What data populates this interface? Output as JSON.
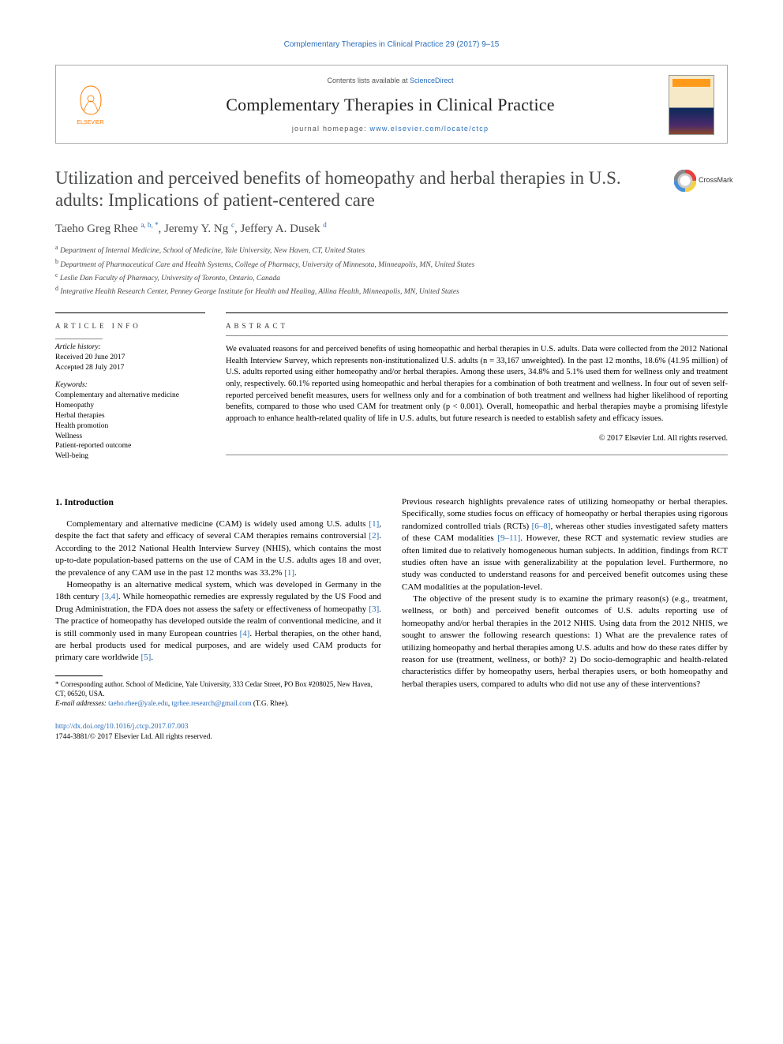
{
  "header": {
    "citation": "Complementary Therapies in Clinical Practice 29 (2017) 9–15",
    "contents_prefix": "Contents lists available at ",
    "contents_link": "ScienceDirect",
    "journal_title": "Complementary Therapies in Clinical Practice",
    "homepage_prefix": "journal homepage: ",
    "homepage_url": "www.elsevier.com/locate/ctcp",
    "publisher": "ELSEVIER"
  },
  "crossmark_label": "CrossMark",
  "article": {
    "title": "Utilization and perceived benefits of homeopathy and herbal therapies in U.S. adults: Implications of patient-centered care",
    "authors_html": "Taeho Greg Rhee <sup>a, b, *</sup>, Jeremy Y. Ng <sup>c</sup>, Jeffery A. Dusek <sup>d</sup>",
    "affiliations": [
      "a Department of Internal Medicine, School of Medicine, Yale University, New Haven, CT, United States",
      "b Department of Pharmaceutical Care and Health Systems, College of Pharmacy, University of Minnesota, Minneapolis, MN, United States",
      "c Leslie Dan Faculty of Pharmacy, University of Toronto, Ontario, Canada",
      "d Integrative Health Research Center, Penney George Institute for Health and Healing, Allina Health, Minneapolis, MN, United States"
    ]
  },
  "info": {
    "heading": "ARTICLE INFO",
    "history_label": "Article history:",
    "received": "Received 20 June 2017",
    "accepted": "Accepted 28 July 2017",
    "keywords_label": "Keywords:",
    "keywords": [
      "Complementary and alternative medicine",
      "Homeopathy",
      "Herbal therapies",
      "Health promotion",
      "Wellness",
      "Patient-reported outcome",
      "Well-being"
    ]
  },
  "abstract": {
    "heading": "ABSTRACT",
    "text": "We evaluated reasons for and perceived benefits of using homeopathic and herbal therapies in U.S. adults. Data were collected from the 2012 National Health Interview Survey, which represents non-institutionalized U.S. adults (n = 33,167 unweighted). In the past 12 months, 18.6% (41.95 million) of U.S. adults reported using either homeopathy and/or herbal therapies. Among these users, 34.8% and 5.1% used them for wellness only and treatment only, respectively. 60.1% reported using homeopathic and herbal therapies for a combination of both treatment and wellness. In four out of seven self-reported perceived benefit measures, users for wellness only and for a combination of both treatment and wellness had higher likelihood of reporting benefits, compared to those who used CAM for treatment only (p < 0.001). Overall, homeopathic and herbal therapies maybe a promising lifestyle approach to enhance health-related quality of life in U.S. adults, but future research is needed to establish safety and efficacy issues.",
    "copyright": "© 2017 Elsevier Ltd. All rights reserved."
  },
  "body": {
    "section1_heading": "1. Introduction",
    "para1": "Complementary and alternative medicine (CAM) is widely used among U.S. adults [1], despite the fact that safety and efficacy of several CAM therapies remains controversial [2]. According to the 2012 National Health Interview Survey (NHIS), which contains the most up-to-date population-based patterns on the use of CAM in the U.S. adults ages 18 and over, the prevalence of any CAM use in the past 12 months was 33.2% [1].",
    "para2": "Homeopathy is an alternative medical system, which was developed in Germany in the 18th century [3,4]. While homeopathic remedies are expressly regulated by the US Food and Drug Administration, the FDA does not assess the safety or effectiveness of homeopathy [3]. The practice of homeopathy has developed outside the realm of conventional medicine, and it is still commonly used in many European countries [4]. Herbal therapies, on the other hand, are herbal products used for medical purposes, and are widely used CAM products for primary care worldwide [5].",
    "para3": "Previous research highlights prevalence rates of utilizing homeopathy or herbal therapies. Specifically, some studies focus on efficacy of homeopathy or herbal therapies using rigorous randomized controlled trials (RCTs) [6–8], whereas other studies investigated safety matters of these CAM modalities [9–11]. However, these RCT and systematic review studies are often limited due to relatively homogeneous human subjects. In addition, findings from RCT studies often have an issue with generalizability at the population level. Furthermore, no study was conducted to understand reasons for and perceived benefit outcomes using these CAM modalities at the population-level.",
    "para4": "The objective of the present study is to examine the primary reason(s) (e.g., treatment, wellness, or both) and perceived benefit outcomes of U.S. adults reporting use of homeopathy and/or herbal therapies in the 2012 NHIS. Using data from the 2012 NHIS, we sought to answer the following research questions: 1) What are the prevalence rates of utilizing homeopathy and herbal therapies among U.S. adults and how do these rates differ by reason for use (treatment, wellness, or both)? 2) Do socio-demographic and health-related characteristics differ by homeopathy users, herbal therapies users, or both homeopathy and herbal therapies users, compared to adults who did not use any of these interventions?"
  },
  "footnote": {
    "corresponding": "* Corresponding author. School of Medicine, Yale University, 333 Cedar Street, PO Box #208025, New Haven, CT, 06520, USA.",
    "email_label": "E-mail addresses: ",
    "email1": "taeho.rhee@yale.edu",
    "email_sep": ", ",
    "email2": "tgrhee.research@gmail.com",
    "email_suffix": " (T.G. Rhee)."
  },
  "footer": {
    "doi": "http://dx.doi.org/10.1016/j.ctcp.2017.07.003",
    "issn_line": "1744-3881/© 2017 Elsevier Ltd. All rights reserved."
  },
  "colors": {
    "link": "#2a6ebb",
    "elsevier_orange": "#ff7a00",
    "text_gray": "#4a4a4a"
  }
}
